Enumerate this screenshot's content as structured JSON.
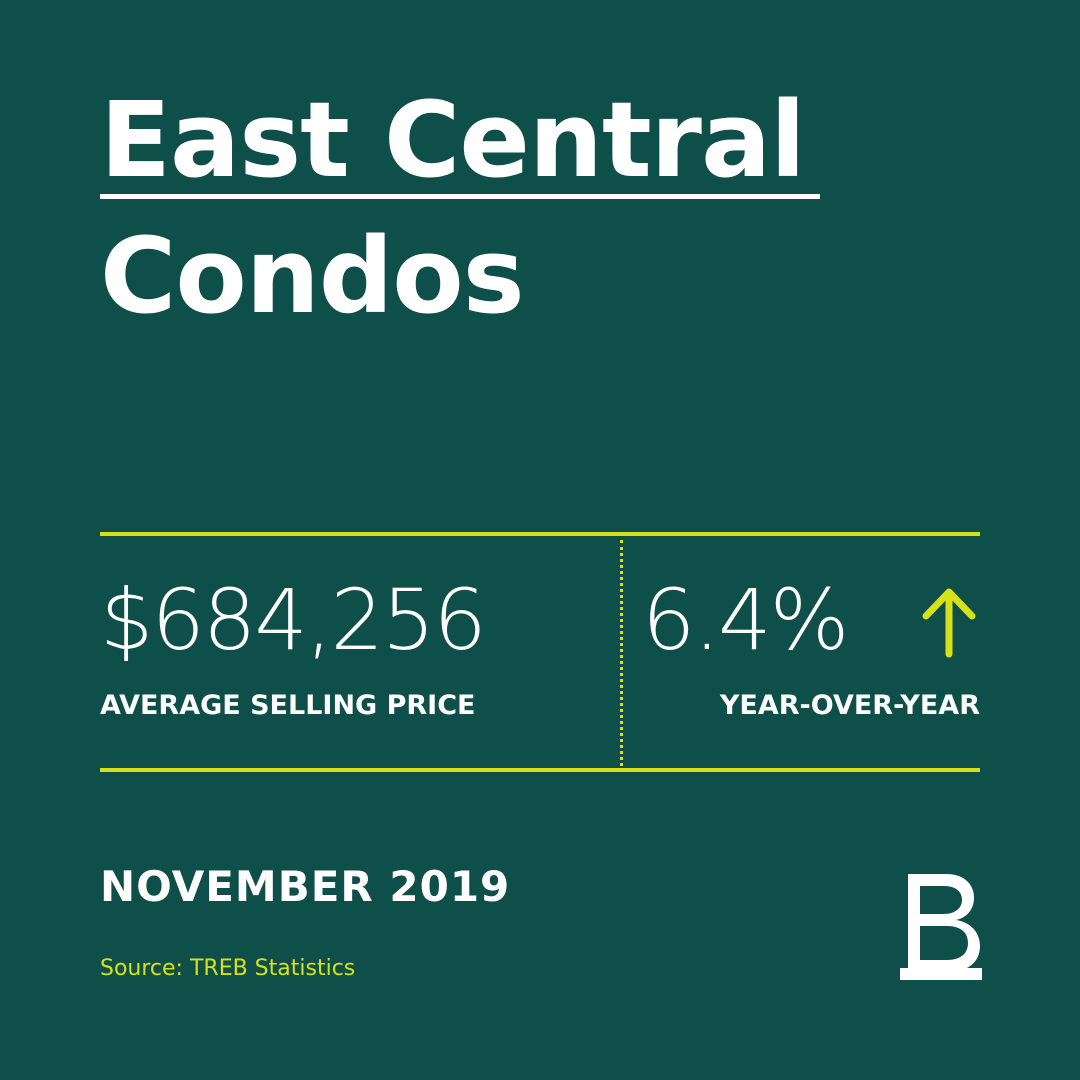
{
  "title": {
    "line1": "East Central",
    "line2": "Condos"
  },
  "stats": {
    "price": {
      "value": "$684,256",
      "label": "AVERAGE SELLING PRICE"
    },
    "change": {
      "value": "6.4%",
      "label": "YEAR-OVER-YEAR",
      "direction_icon": "arrow-up-icon"
    }
  },
  "date": "NOVEMBER 2019",
  "source": "Source: TREB Statistics",
  "logo_icon": "brand-b-logo-icon",
  "colors": {
    "background": "#0f4f4a",
    "accent": "#d7e117",
    "text": "#ffffff"
  }
}
